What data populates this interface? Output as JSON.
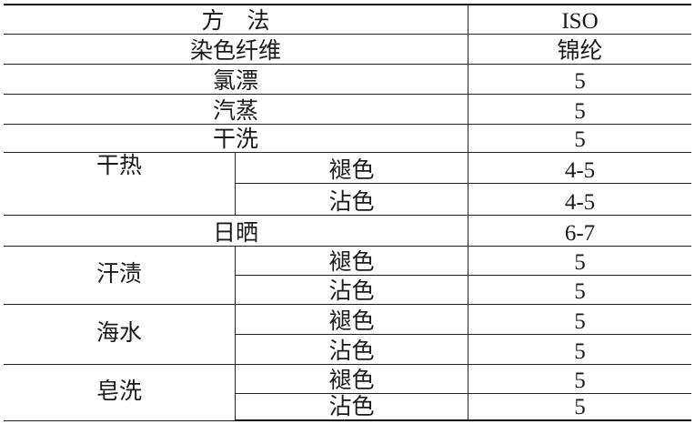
{
  "header": {
    "method": "方　法",
    "standard": "ISO"
  },
  "fiber_row": {
    "label": "染色纤维",
    "value": "锦纶"
  },
  "simple_rows": [
    {
      "label": "氯漂",
      "value": "5"
    },
    {
      "label": "汽蒸",
      "value": "5"
    },
    {
      "label": "干洗",
      "value": "5"
    }
  ],
  "dry_heat": {
    "label": "干热",
    "sub": [
      {
        "label": "褪色",
        "value": "4-5"
      },
      {
        "label": "沾色",
        "value": "4-5"
      }
    ]
  },
  "light": {
    "label": "日晒",
    "value": "6-7"
  },
  "perspiration": {
    "label": "汗渍",
    "sub": [
      {
        "label": "褪色",
        "value": "5"
      },
      {
        "label": "沾色",
        "value": "5"
      }
    ]
  },
  "seawater": {
    "label": "海水",
    "sub": [
      {
        "label": "褪色",
        "value": "5"
      },
      {
        "label": "沾色",
        "value": "5"
      }
    ]
  },
  "soaping": {
    "label": "皂洗",
    "sub": [
      {
        "label": "褪色",
        "value": "5"
      },
      {
        "label": "沾色",
        "value": "5"
      }
    ]
  }
}
